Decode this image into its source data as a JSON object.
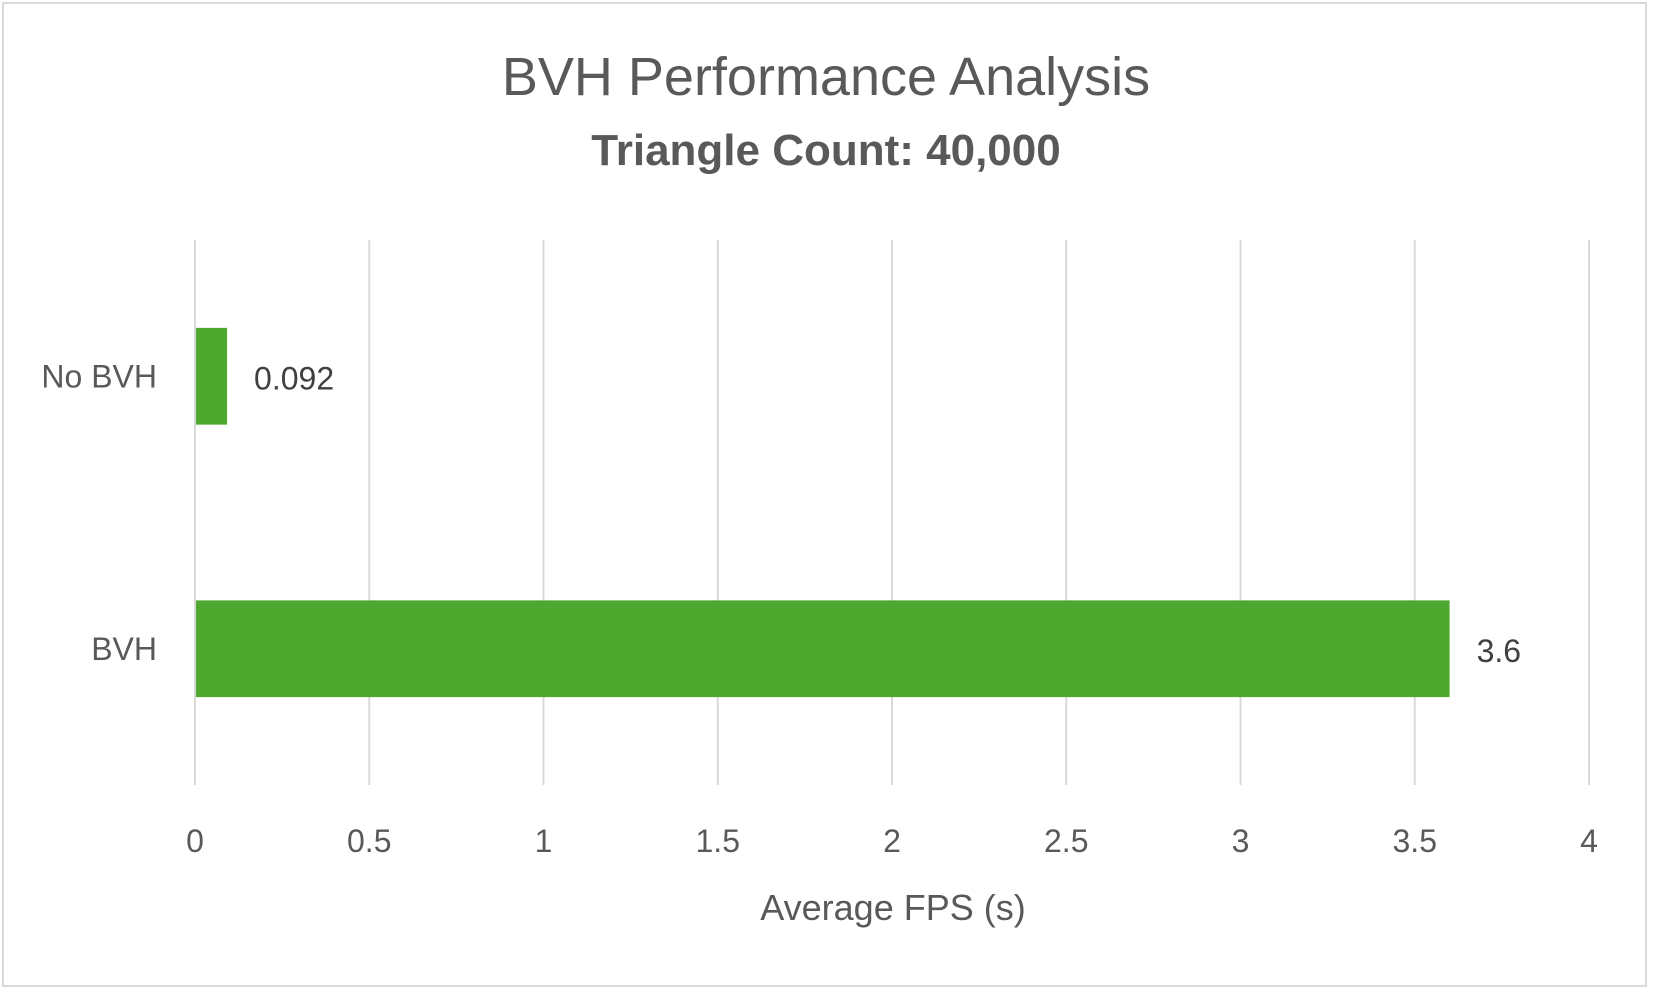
{
  "chart_data": {
    "type": "bar",
    "orientation": "horizontal",
    "title": "BVH Performance Analysis",
    "subtitle": "Triangle Count: 40,000",
    "xlabel": "Average FPS (s)",
    "ylabel": "",
    "xlim": [
      0,
      4
    ],
    "x_ticks": [
      "0",
      "0.5",
      "1",
      "1.5",
      "2",
      "2.5",
      "3",
      "3.5",
      "4"
    ],
    "categories": [
      "No BVH",
      "BVH"
    ],
    "values": [
      0.092,
      3.6
    ],
    "data_labels": [
      "0.092",
      "3.6"
    ],
    "bar_color": "#4ea72e",
    "gridlines": true,
    "legend": "none"
  }
}
